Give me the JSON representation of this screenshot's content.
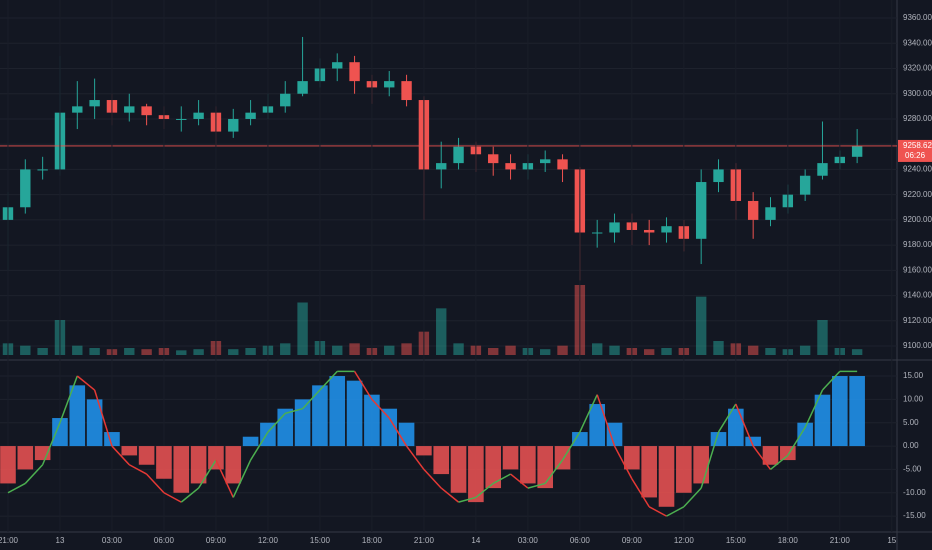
{
  "chart_data": [
    {
      "type": "candlestick",
      "name": "price",
      "x": [
        0,
        1,
        2,
        3,
        4,
        5,
        6,
        7,
        8,
        9,
        10,
        11,
        12,
        13,
        14,
        15,
        16,
        17,
        18,
        19,
        20,
        21,
        22,
        23,
        24,
        25,
        26,
        27,
        28,
        29,
        30,
        31,
        32,
        33,
        34,
        35,
        36,
        37,
        38,
        39,
        40,
        41,
        42,
        43,
        44,
        45,
        46,
        47,
        48,
        49
      ],
      "open": [
        9200,
        9210,
        9240,
        9240,
        9285,
        9290,
        9295,
        9285,
        9290,
        9283,
        9280,
        9280,
        9285,
        9270,
        9280,
        9285,
        9290,
        9300,
        9310,
        9320,
        9325,
        9310,
        9305,
        9310,
        9295,
        9240,
        9245,
        9258,
        9252,
        9245,
        9240,
        9245,
        9248,
        9240,
        9190,
        9190,
        9198,
        9192,
        9190,
        9195,
        9185,
        9230,
        9240,
        9215,
        9200,
        9210,
        9220,
        9235,
        9245,
        9250
      ],
      "high": [
        9222,
        9248,
        9250,
        9330,
        9310,
        9312,
        9300,
        9300,
        9292,
        9290,
        9290,
        9295,
        9290,
        9288,
        9295,
        9300,
        9310,
        9345,
        9328,
        9332,
        9330,
        9315,
        9318,
        9315,
        9298,
        9262,
        9265,
        9262,
        9258,
        9252,
        9252,
        9255,
        9252,
        9242,
        9200,
        9205,
        9205,
        9200,
        9202,
        9200,
        9240,
        9248,
        9245,
        9222,
        9218,
        9228,
        9240,
        9278,
        9255,
        9272
      ],
      "low": [
        9160,
        9205,
        9232,
        9235,
        9272,
        9280,
        9275,
        9278,
        9275,
        9272,
        9270,
        9275,
        9258,
        9265,
        9275,
        9280,
        9285,
        9298,
        9305,
        9310,
        9300,
        9292,
        9298,
        9290,
        9200,
        9225,
        9240,
        9238,
        9235,
        9232,
        9232,
        9238,
        9230,
        9152,
        9178,
        9182,
        9180,
        9180,
        9182,
        9175,
        9165,
        9222,
        9200,
        9185,
        9195,
        9205,
        9215,
        9232,
        9240,
        9245
      ],
      "close": [
        9210,
        9240,
        9240,
        9285,
        9290,
        9295,
        9285,
        9290,
        9283,
        9280,
        9280,
        9285,
        9270,
        9280,
        9285,
        9290,
        9300,
        9310,
        9320,
        9325,
        9310,
        9305,
        9310,
        9295,
        9240,
        9245,
        9258,
        9252,
        9245,
        9240,
        9245,
        9248,
        9240,
        9190,
        9190,
        9198,
        9192,
        9190,
        9195,
        9185,
        9230,
        9240,
        9215,
        9200,
        9210,
        9220,
        9235,
        9245,
        9250,
        9258.62
      ],
      "volume": [
        10,
        8,
        6,
        30,
        8,
        6,
        5,
        6,
        5,
        6,
        4,
        5,
        12,
        5,
        6,
        8,
        10,
        45,
        12,
        8,
        10,
        6,
        8,
        10,
        20,
        40,
        10,
        8,
        6,
        8,
        6,
        5,
        8,
        60,
        10,
        8,
        6,
        5,
        6,
        6,
        50,
        12,
        10,
        8,
        6,
        5,
        8,
        30,
        6,
        5
      ],
      "up_color": "#26a69a",
      "down_color": "#ef5350",
      "xlim": [
        -0.46,
        51.3
      ],
      "ylim": [
        9092.9,
        9374.3
      ],
      "yticks": [
        {
          "value": 9100,
          "label": "9100.00"
        },
        {
          "value": 9120,
          "label": "9120.00"
        },
        {
          "value": 9140,
          "label": "9140.00"
        },
        {
          "value": 9160,
          "label": "9160.00"
        },
        {
          "value": 9180,
          "label": "9180.00"
        },
        {
          "value": 9200,
          "label": "9200.00"
        },
        {
          "value": 9220,
          "label": "9220.00"
        },
        {
          "value": 9240,
          "label": "9240.00"
        },
        {
          "value": 9260,
          "label": "9260.00"
        },
        {
          "value": 9280,
          "label": "9280.00"
        },
        {
          "value": 9300,
          "label": "9300.00"
        },
        {
          "value": 9320,
          "label": "9320.00"
        },
        {
          "value": 9340,
          "label": "9340.00"
        },
        {
          "value": 9360,
          "label": "9360.00"
        }
      ],
      "countdown": "06:26",
      "grid": true
    },
    {
      "type": "histogram-oscillator",
      "name": "oscillator",
      "x": [
        0,
        1,
        2,
        3,
        4,
        5,
        6,
        7,
        8,
        9,
        10,
        11,
        12,
        13,
        14,
        15,
        16,
        17,
        18,
        19,
        20,
        21,
        22,
        23,
        24,
        25,
        26,
        27,
        28,
        29,
        30,
        31,
        32,
        33,
        34,
        35,
        36,
        37,
        38,
        39,
        40,
        41,
        42,
        43,
        44,
        45,
        46,
        47,
        48,
        49
      ],
      "values": [
        -8,
        -5,
        -3,
        6,
        13,
        10,
        3,
        -2,
        -4,
        -7,
        -10,
        -8,
        -5,
        -8,
        2,
        5,
        8,
        10,
        13,
        15,
        14,
        11,
        8,
        5,
        -2,
        -6,
        -10,
        -12,
        -9,
        -5,
        -8,
        -9,
        -5,
        3,
        9,
        5,
        -5,
        -11,
        -13,
        -10,
        -8,
        3,
        8,
        2,
        -4,
        -3,
        5,
        11,
        15,
        15
      ],
      "line": [
        -10,
        -8,
        -4,
        5,
        15,
        12,
        0,
        -4,
        -6,
        -10,
        -12,
        -9,
        -3,
        -11,
        -3,
        3,
        7,
        8,
        12,
        16,
        16,
        10,
        6,
        0,
        -5,
        -9,
        -12,
        -11,
        -8,
        -6,
        -9,
        -8,
        -3,
        3,
        11,
        0,
        -7,
        -13,
        -15,
        -13,
        -9,
        3,
        9,
        0,
        -5,
        -2,
        4,
        12,
        16,
        16
      ],
      "pos_color": "#2196f3",
      "neg_color": "#f05454",
      "rise_color": "#4caf50",
      "fall_color": "#e53935",
      "xlim": [
        -0.46,
        51.3
      ],
      "ylim": [
        -18.4,
        18
      ],
      "yticks": [
        {
          "value": 15,
          "label": "15.00"
        },
        {
          "value": 10,
          "label": "10.00"
        },
        {
          "value": 5,
          "label": "5.00"
        },
        {
          "value": 0,
          "label": "0.00"
        },
        {
          "value": -5,
          "label": "-5.00"
        },
        {
          "value": -10,
          "label": "-10.00"
        },
        {
          "value": -15,
          "label": "-15.00"
        }
      ],
      "xticks": [
        {
          "value": 0,
          "label": "21:00"
        },
        {
          "value": 3,
          "label": "13"
        },
        {
          "value": 6,
          "label": "03:00"
        },
        {
          "value": 9,
          "label": "06:00"
        },
        {
          "value": 12,
          "label": "09:00"
        },
        {
          "value": 15,
          "label": "12:00"
        },
        {
          "value": 18,
          "label": "15:00"
        },
        {
          "value": 21,
          "label": "18:00"
        },
        {
          "value": 24,
          "label": "21:00"
        },
        {
          "value": 27,
          "label": "14"
        },
        {
          "value": 30,
          "label": "03:00"
        },
        {
          "value": 33,
          "label": "06:00"
        },
        {
          "value": 36,
          "label": "09:00"
        },
        {
          "value": 39,
          "label": "12:00"
        },
        {
          "value": 42,
          "label": "15:00"
        },
        {
          "value": 45,
          "label": "18:00"
        },
        {
          "value": 48,
          "label": "21:00"
        },
        {
          "value": 51,
          "label": "15"
        }
      ],
      "grid": true
    }
  ]
}
